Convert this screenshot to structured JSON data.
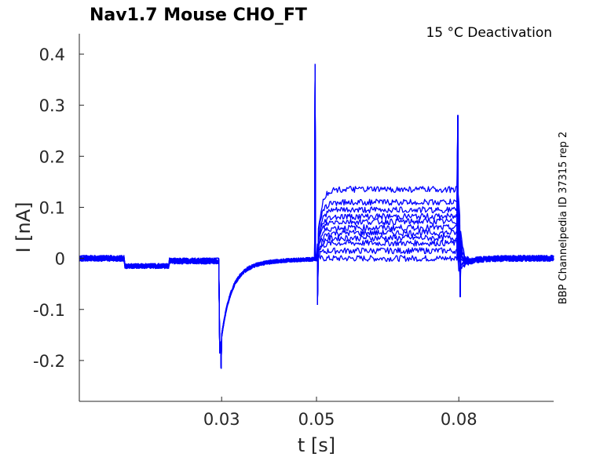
{
  "chart_data": {
    "type": "line",
    "title": "Nav1.7  Mouse  CHO_FT",
    "annotation": "15 °C  Deactivation",
    "side_label": "BBP Channelpedia ID 37315 rep 2",
    "xlabel": "t [s]",
    "ylabel": "I [nA]",
    "xlim": [
      0.0,
      0.1
    ],
    "ylim": [
      -0.28,
      0.44
    ],
    "xticks": [
      0.03,
      0.05,
      0.08
    ],
    "xtick_labels": [
      "0.03",
      "0.05",
      "0.08"
    ],
    "yticks": [
      -0.2,
      -0.1,
      0,
      0.1,
      0.2,
      0.3,
      0.4
    ],
    "ytick_labels": [
      "-0.2",
      "-0.1",
      "0",
      "0.1",
      "0.2",
      "0.3",
      "0.4"
    ],
    "grid": false,
    "line_color": "#0000ff",
    "sweeps": {
      "count": 11,
      "step_start_s": 0.05,
      "step_end_s": 0.08,
      "plateau_nA": [
        0.0,
        0.015,
        0.03,
        0.04,
        0.05,
        0.06,
        0.072,
        0.082,
        0.095,
        0.11,
        0.135
      ],
      "shared_peak_nA": 0.38,
      "shared_trough_nA": -0.215,
      "tail_peak_nA": 0.28,
      "tail_trough_nA": -0.075
    }
  }
}
